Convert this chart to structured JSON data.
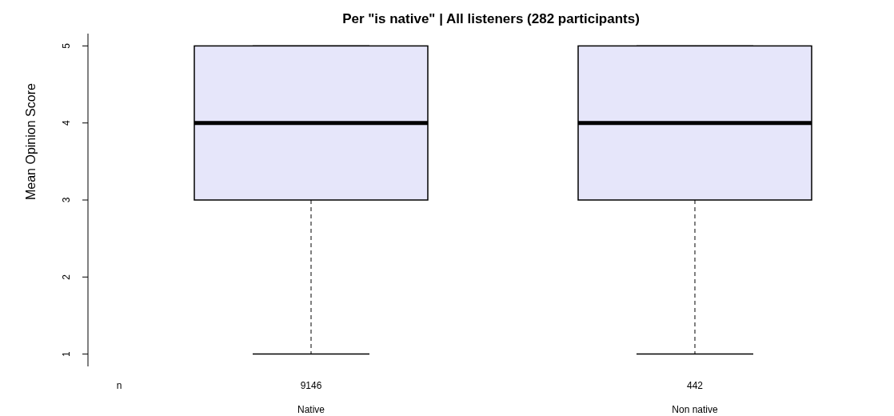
{
  "chart_data": {
    "type": "box",
    "title": "Per \"is native\" | All listeners (282 participants)",
    "ylabel": "Mean Opinion Score",
    "categories": [
      "Native",
      "Non native"
    ],
    "color": "#e6e6fa",
    "boxes": [
      {
        "low": 1,
        "q1": 3,
        "median": 4,
        "q3": 5,
        "high": 5
      },
      {
        "low": 1,
        "q1": 3,
        "median": 4,
        "q3": 5,
        "high": 5
      }
    ],
    "ylim": [
      0.84,
      5.16
    ],
    "yticks": [
      1,
      2,
      3,
      4,
      5
    ],
    "annotations": [
      "n",
      "9146",
      "442"
    ]
  }
}
